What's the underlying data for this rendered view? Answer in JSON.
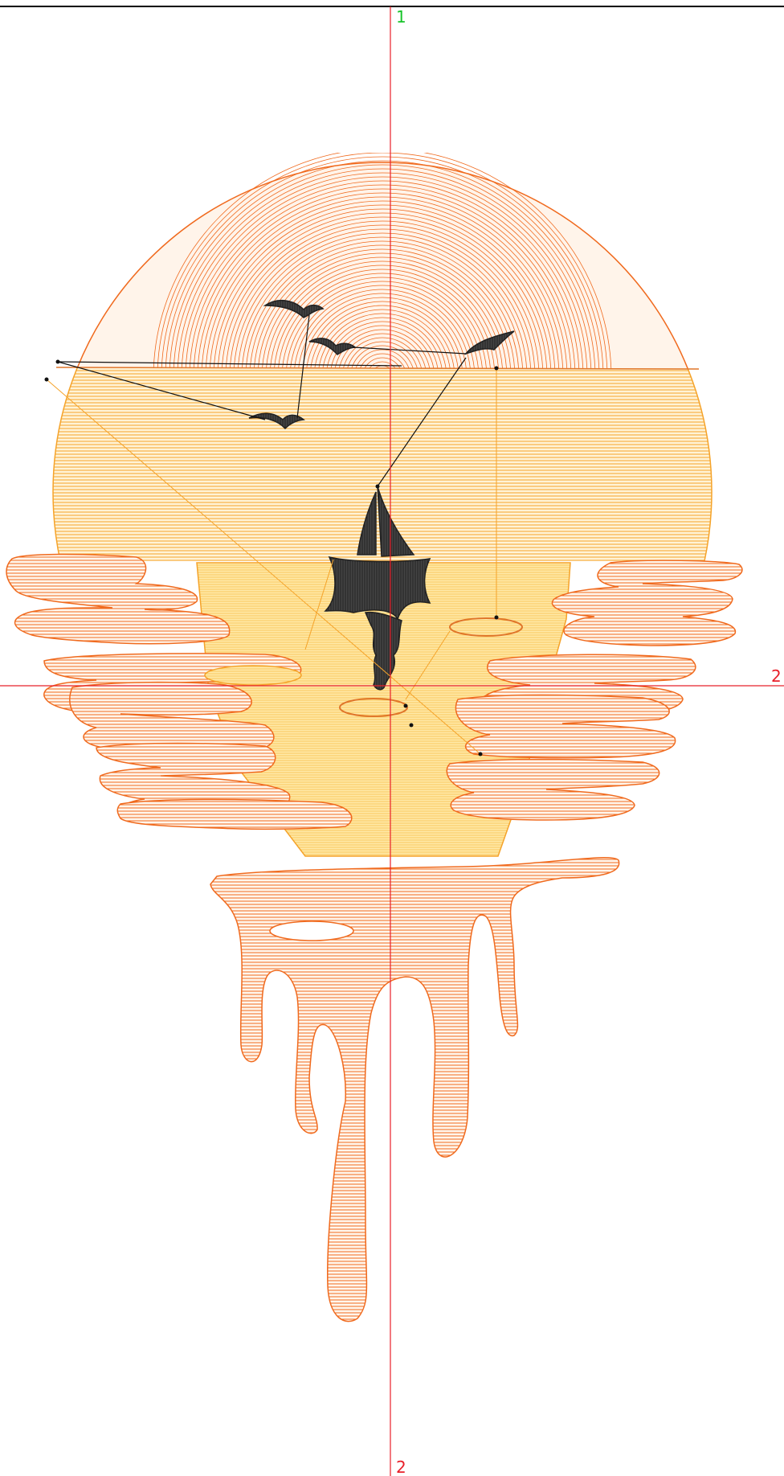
{
  "guides": {
    "vertical_label_top": "1",
    "vertical_label_bottom": "2",
    "horizontal_label_right": "2"
  },
  "colors": {
    "guide_red": "#e8202a",
    "guide_green": "#18c42a",
    "sun_stitch": "#f06a1e",
    "glow_stitch": "#f5b43a",
    "pale_stitch": "#fde3a0",
    "silhouette": "#3a3a3a",
    "jump_line": "#000000"
  }
}
